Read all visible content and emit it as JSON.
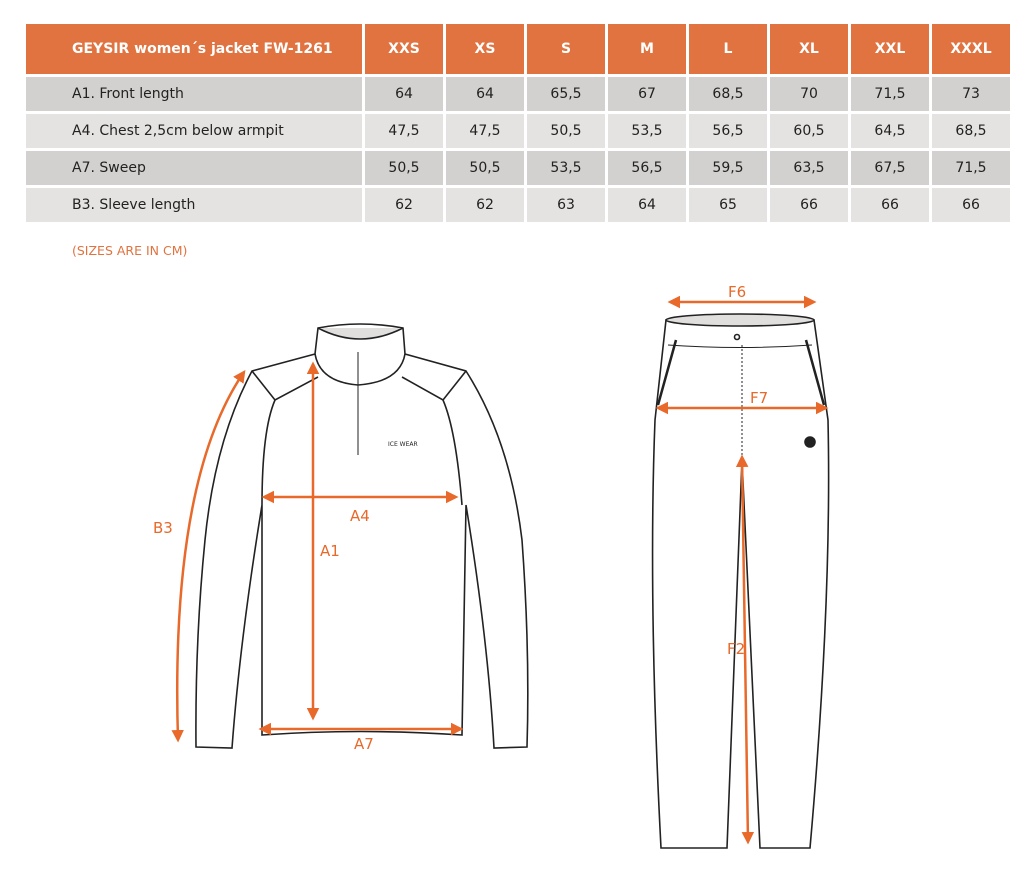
{
  "table": {
    "title": "GEYSIR women´s jacket FW-1261",
    "sizes": [
      "XXS",
      "XS",
      "S",
      "M",
      "L",
      "XL",
      "XXL",
      "XXXL"
    ],
    "rows": [
      {
        "label": "A1. Front length",
        "values": [
          "64",
          "64",
          "65,5",
          "67",
          "68,5",
          "70",
          "71,5",
          "73"
        ]
      },
      {
        "label": "A4. Chest 2,5cm below armpit",
        "values": [
          "47,5",
          "47,5",
          "50,5",
          "53,5",
          "56,5",
          "60,5",
          "64,5",
          "68,5"
        ]
      },
      {
        "label": "A7. Sweep",
        "values": [
          "50,5",
          "50,5",
          "53,5",
          "56,5",
          "59,5",
          "63,5",
          "67,5",
          "71,5"
        ]
      },
      {
        "label": "B3. Sleeve length",
        "values": [
          "62",
          "62",
          "63",
          "64",
          "65",
          "66",
          "66",
          "66"
        ]
      }
    ]
  },
  "note": "(SIZES ARE IN CM)",
  "diagram": {
    "jacket_labels": {
      "b3": "B3",
      "a1": "A1",
      "a4": "A4",
      "a7": "A7"
    },
    "pants_labels": {
      "f6": "F6",
      "f7": "F7",
      "f2": "F2"
    },
    "logo": "ICE WEAR"
  },
  "colors": {
    "accent": "#e07340",
    "row_dark": "#d2d1cf",
    "row_light": "#e4e3e1",
    "arrow": "#e8692a"
  }
}
